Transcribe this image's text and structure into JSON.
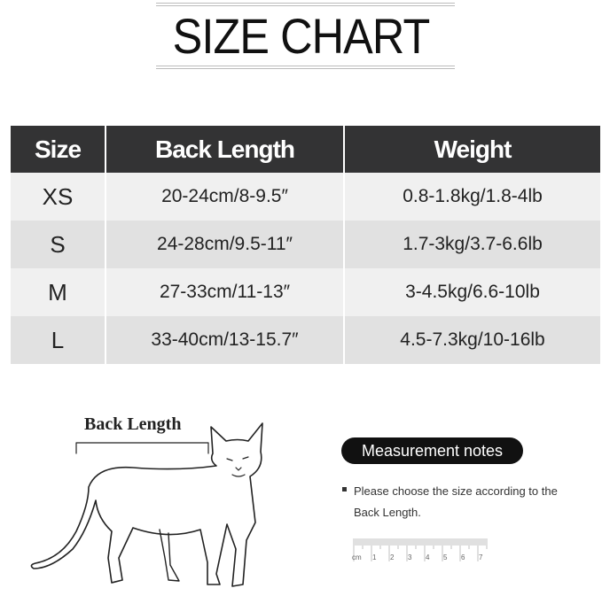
{
  "title": "SIZE CHART",
  "table": {
    "headers": [
      "Size",
      "Back Length",
      "Weight"
    ],
    "rows": [
      {
        "size": "XS",
        "back_length": "20-24cm/8-9.5″",
        "weight": "0.8-1.8kg/1.8-4lb"
      },
      {
        "size": "S",
        "back_length": "24-28cm/9.5-11″",
        "weight": "1.7-3kg/3.7-6.6lb"
      },
      {
        "size": "M",
        "back_length": "27-33cm/11-13″",
        "weight": "3-4.5kg/6.6-10lb"
      },
      {
        "size": "L",
        "back_length": "33-40cm/13-15.7″",
        "weight": "4.5-7.3kg/10-16lb"
      }
    ]
  },
  "diagram": {
    "back_length_label": "Back Length"
  },
  "notes": {
    "heading": "Measurement notes",
    "text": "Please choose the size according to the Back Length.",
    "ruler_unit": "cm",
    "ruler_ticks": [
      "1",
      "2",
      "3",
      "4",
      "5",
      "6",
      "7"
    ]
  }
}
